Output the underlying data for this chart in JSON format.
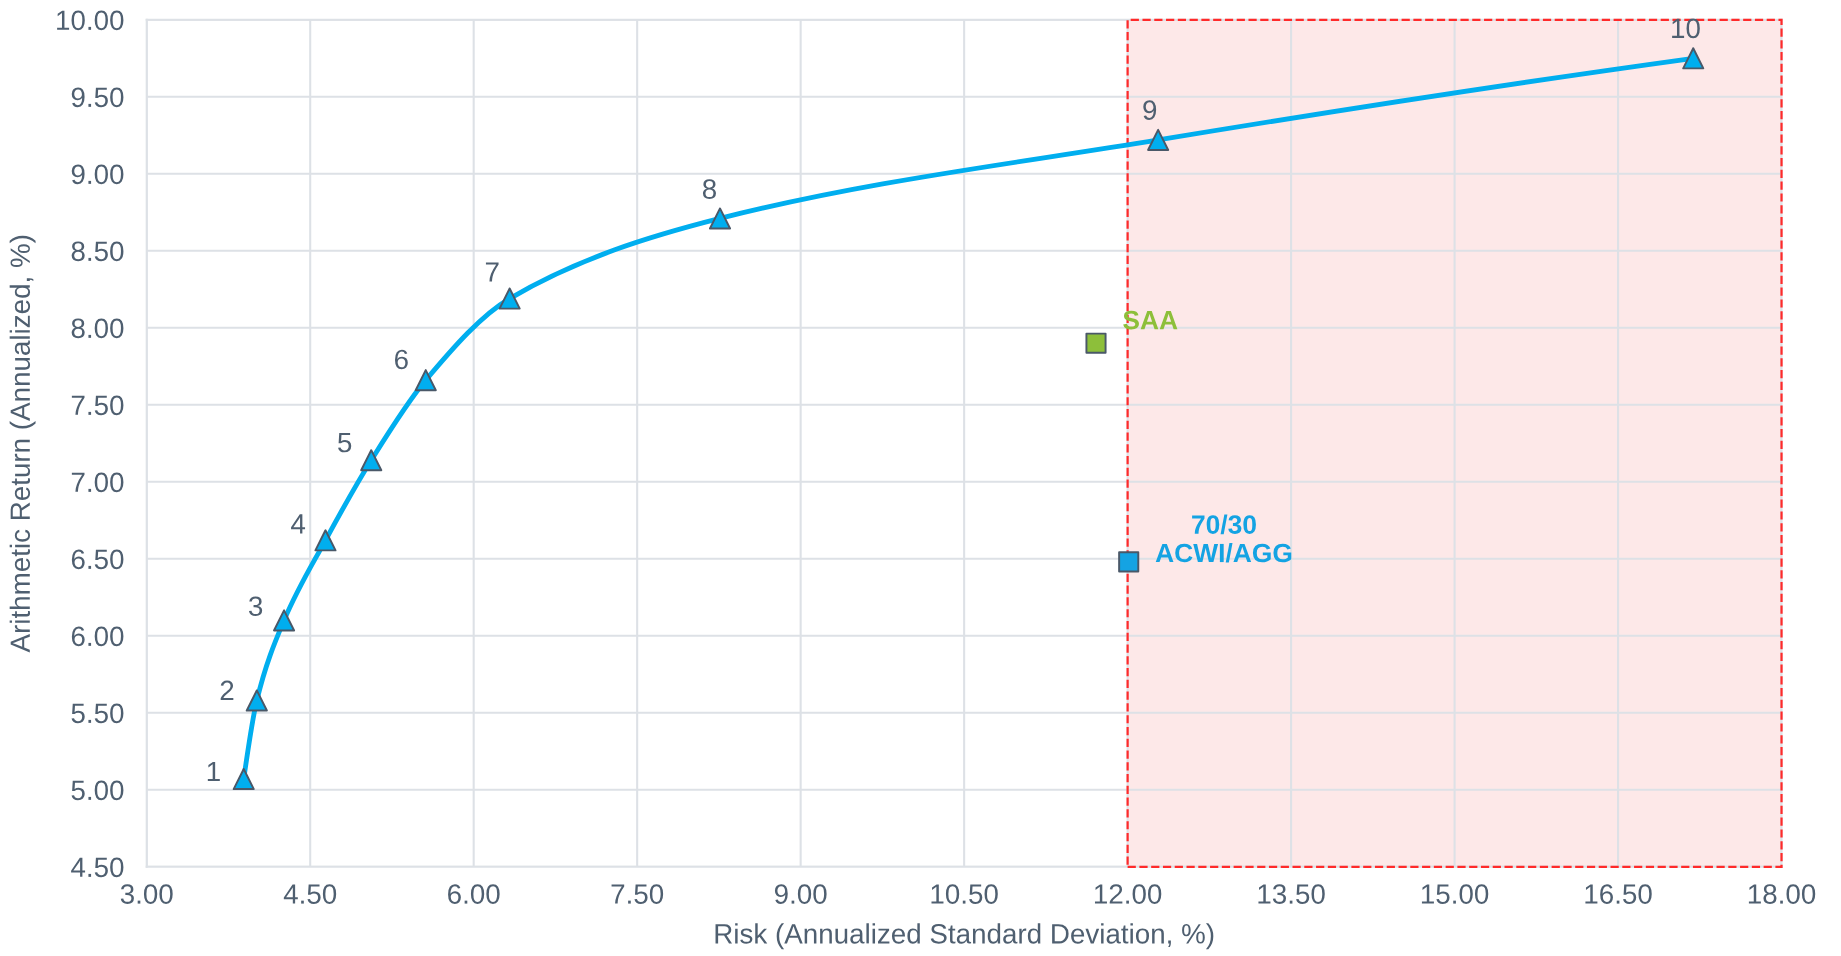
{
  "chart_data": {
    "type": "line",
    "xlabel": "Risk (Annualized Standard Deviation, %)",
    "ylabel": "Arithmetic Return (Annualized, %)",
    "xlim": [
      3,
      18
    ],
    "ylim": [
      4.5,
      10
    ],
    "xticks": [
      {
        "value": 3,
        "label": "3.00"
      },
      {
        "value": 4.5,
        "label": "4.50"
      },
      {
        "value": 6,
        "label": "6.00"
      },
      {
        "value": 7.5,
        "label": "7.50"
      },
      {
        "value": 9,
        "label": "9.00"
      },
      {
        "value": 10.5,
        "label": "10.50"
      },
      {
        "value": 12,
        "label": "12.00"
      },
      {
        "value": 13.5,
        "label": "13.50"
      },
      {
        "value": 15,
        "label": "15.00"
      },
      {
        "value": 16.5,
        "label": "16.50"
      },
      {
        "value": 18,
        "label": "18.00"
      }
    ],
    "yticks": [
      {
        "value": 4.5,
        "label": "4.50"
      },
      {
        "value": 5,
        "label": "5.00"
      },
      {
        "value": 5.5,
        "label": "5.50"
      },
      {
        "value": 6,
        "label": "6.00"
      },
      {
        "value": 6.5,
        "label": "6.50"
      },
      {
        "value": 7,
        "label": "7.00"
      },
      {
        "value": 7.5,
        "label": "7.50"
      },
      {
        "value": 8,
        "label": "8.00"
      },
      {
        "value": 8.5,
        "label": "8.50"
      },
      {
        "value": 9,
        "label": "9.00"
      },
      {
        "value": 9.5,
        "label": "9.50"
      },
      {
        "value": 10,
        "label": "10.00"
      }
    ],
    "grid": true,
    "series": [
      {
        "marker": "triangle",
        "color": "#00aeef",
        "x": [
          3.89,
          4.01,
          4.26,
          4.64,
          5.06,
          5.56,
          6.33,
          8.26,
          12.28,
          17.19
        ],
        "values": [
          5.07,
          5.58,
          6.1,
          6.62,
          7.14,
          7.66,
          8.19,
          8.71,
          9.22,
          9.75
        ]
      },
      {
        "type": "scatter",
        "marker": "square",
        "name": "SAA",
        "color": "#8dbf3a",
        "x": [
          11.71
        ],
        "values": [
          7.9
        ]
      },
      {
        "type": "scatter",
        "marker": "square",
        "name": "70/30\nACWI/AGG",
        "color": "#14a3e3",
        "x": [
          12.01
        ],
        "values": [
          6.48
        ]
      }
    ],
    "bands": [
      {
        "axis": "x",
        "from": 12,
        "to": 18,
        "color": "#fde8e8"
      }
    ],
    "annotations": [
      {
        "text": "1",
        "x": 3.89,
        "y": 5.07
      },
      {
        "text": "2",
        "x": 4.01,
        "y": 5.58
      },
      {
        "text": "3",
        "x": 4.26,
        "y": 6.1
      },
      {
        "text": "4",
        "x": 4.64,
        "y": 6.62
      },
      {
        "text": "5",
        "x": 5.06,
        "y": 7.14
      },
      {
        "text": "6",
        "x": 5.56,
        "y": 7.66
      },
      {
        "text": "7",
        "x": 6.33,
        "y": 8.19
      },
      {
        "text": "8",
        "x": 8.26,
        "y": 8.71
      },
      {
        "text": "9",
        "x": 12.28,
        "y": 9.22
      },
      {
        "text": "10",
        "x": 17.19,
        "y": 9.75
      }
    ]
  }
}
